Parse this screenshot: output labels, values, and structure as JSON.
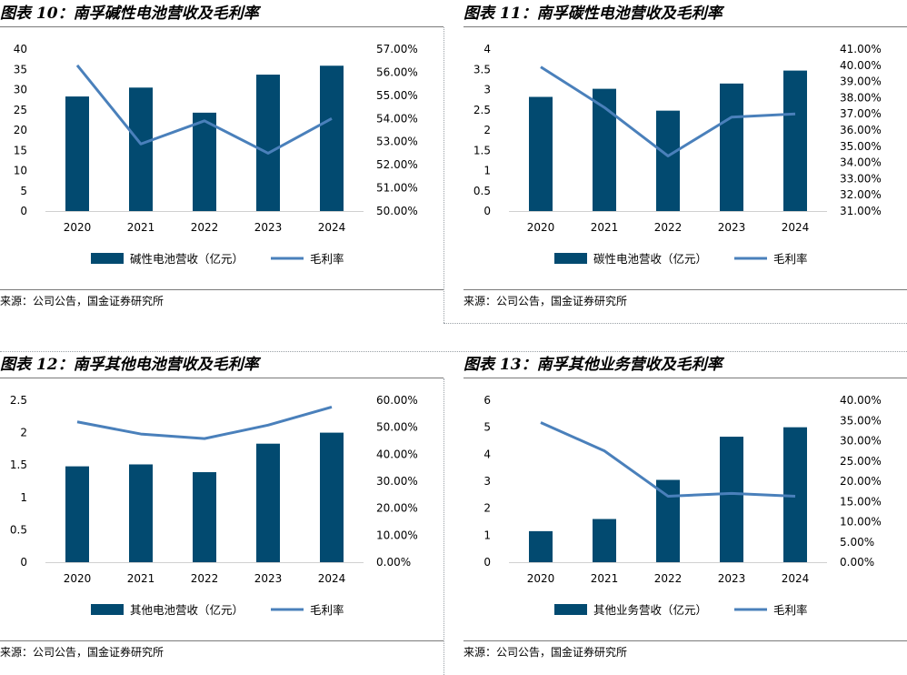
{
  "colors": {
    "bar": "#024a70",
    "line": "#4a80bb",
    "rule": "#7a7a7a"
  },
  "source_label": "来源：公司公告，国金证券研究所",
  "legend_line_label": "毛利率",
  "chart_data": [
    {
      "type": "bar+line",
      "title": "图表 10：南孚碱性电池营收及毛利率",
      "categories": [
        "2020",
        "2021",
        "2022",
        "2023",
        "2024"
      ],
      "series": [
        {
          "name": "碱性电池营收（亿元）",
          "type": "bar",
          "axis": "left",
          "values": [
            28.3,
            30.5,
            24.3,
            33.7,
            35.9
          ]
        },
        {
          "name": "毛利率",
          "type": "line",
          "axis": "right",
          "values": [
            56.3,
            52.9,
            53.9,
            52.5,
            54.0
          ]
        }
      ],
      "left_axis": {
        "min": 0,
        "max": 40,
        "ticks": [
          "0",
          "5",
          "10",
          "15",
          "20",
          "25",
          "30",
          "35",
          "40"
        ]
      },
      "right_axis": {
        "min": 50,
        "max": 57,
        "ticks": [
          "50.00%",
          "51.00%",
          "52.00%",
          "53.00%",
          "54.00%",
          "55.00%",
          "56.00%",
          "57.00%"
        ]
      }
    },
    {
      "type": "bar+line",
      "title": "图表 11：南孚碳性电池营收及毛利率",
      "categories": [
        "2020",
        "2021",
        "2022",
        "2023",
        "2024"
      ],
      "series": [
        {
          "name": "碳性电池营收（亿元）",
          "type": "bar",
          "axis": "left",
          "values": [
            2.82,
            3.02,
            2.48,
            3.15,
            3.47
          ]
        },
        {
          "name": "毛利率",
          "type": "line",
          "axis": "right",
          "values": [
            39.9,
            37.4,
            34.4,
            36.8,
            37.0
          ]
        }
      ],
      "left_axis": {
        "min": 0,
        "max": 4,
        "ticks": [
          "0",
          "0.5",
          "1",
          "1.5",
          "2",
          "2.5",
          "3",
          "3.5",
          "4"
        ]
      },
      "right_axis": {
        "min": 31,
        "max": 41,
        "ticks": [
          "31.00%",
          "32.00%",
          "33.00%",
          "34.00%",
          "35.00%",
          "36.00%",
          "37.00%",
          "38.00%",
          "39.00%",
          "40.00%",
          "41.00%"
        ]
      }
    },
    {
      "type": "bar+line",
      "title": "图表 12：南孚其他电池营收及毛利率",
      "categories": [
        "2020",
        "2021",
        "2022",
        "2023",
        "2024"
      ],
      "series": [
        {
          "name": "其他电池营收（亿元）",
          "type": "bar",
          "axis": "left",
          "values": [
            1.48,
            1.51,
            1.39,
            1.83,
            2.0
          ]
        },
        {
          "name": "毛利率",
          "type": "line",
          "axis": "right",
          "values": [
            52.0,
            47.5,
            45.8,
            50.8,
            57.5
          ]
        }
      ],
      "left_axis": {
        "min": 0,
        "max": 2.5,
        "ticks": [
          "0",
          "0.5",
          "1",
          "1.5",
          "2",
          "2.5"
        ]
      },
      "right_axis": {
        "min": 0,
        "max": 60,
        "ticks": [
          "0.00%",
          "10.00%",
          "20.00%",
          "30.00%",
          "40.00%",
          "50.00%",
          "60.00%"
        ]
      }
    },
    {
      "type": "bar+line",
      "title": "图表 13：南孚其他业务营收及毛利率",
      "categories": [
        "2020",
        "2021",
        "2022",
        "2023",
        "2024"
      ],
      "series": [
        {
          "name": "其他业务营收（亿元）",
          "type": "bar",
          "axis": "left",
          "values": [
            1.15,
            1.6,
            3.05,
            4.65,
            5.0
          ]
        },
        {
          "name": "毛利率",
          "type": "line",
          "axis": "right",
          "values": [
            34.5,
            27.5,
            16.3,
            17.0,
            16.3
          ]
        }
      ],
      "left_axis": {
        "min": 0,
        "max": 6,
        "ticks": [
          "0",
          "1",
          "2",
          "3",
          "4",
          "5",
          "6"
        ]
      },
      "right_axis": {
        "min": 0,
        "max": 40,
        "ticks": [
          "0.00%",
          "5.00%",
          "10.00%",
          "15.00%",
          "20.00%",
          "25.00%",
          "30.00%",
          "35.00%",
          "40.00%"
        ]
      }
    }
  ]
}
